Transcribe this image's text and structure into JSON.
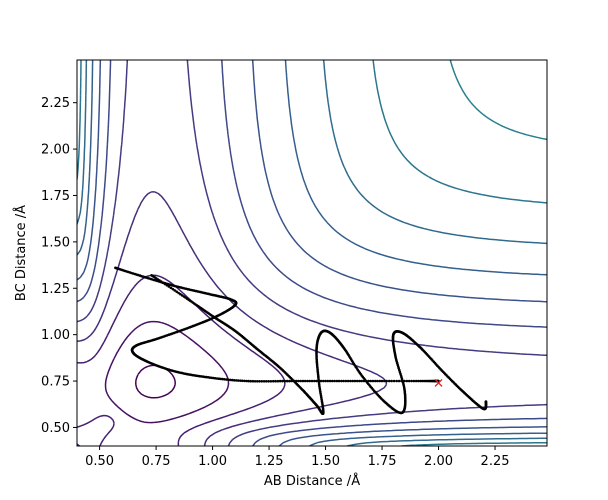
{
  "chart_data": {
    "type": "contour",
    "title": "",
    "xlabel": "AB Distance /Å",
    "ylabel": "BC Distance /Å",
    "xlim": [
      0.4,
      2.48
    ],
    "ylim": [
      0.4,
      2.48
    ],
    "xticks": [
      "0.50",
      "0.75",
      "1.00",
      "1.25",
      "1.50",
      "1.75",
      "2.00",
      "2.25"
    ],
    "yticks": [
      "0.50",
      "0.75",
      "1.00",
      "1.25",
      "1.50",
      "1.75",
      "2.00",
      "2.25"
    ],
    "grid": false,
    "colormap": "viridis",
    "contour_levels": 24,
    "surface": {
      "description": "LEPS-like potential energy surface for A + BC",
      "well_depth": 1.0,
      "equilibrium_distance": 0.74,
      "morse_a": 1.9
    },
    "trajectory": {
      "color": "#000000",
      "points": [
        [
          0.57,
          1.36
        ],
        [
          0.7,
          1.31
        ],
        [
          0.84,
          1.26
        ],
        [
          0.98,
          1.22
        ],
        [
          1.08,
          1.19
        ],
        [
          1.1,
          1.16
        ],
        [
          1.02,
          1.1
        ],
        [
          0.9,
          1.04
        ],
        [
          0.76,
          0.98
        ],
        [
          0.66,
          0.94
        ],
        [
          0.65,
          0.9
        ],
        [
          0.72,
          0.85
        ],
        [
          0.84,
          0.8
        ],
        [
          0.98,
          0.77
        ],
        [
          1.15,
          0.75
        ],
        [
          1.35,
          0.75
        ],
        [
          1.55,
          0.75
        ],
        [
          1.75,
          0.75
        ],
        [
          1.95,
          0.75
        ],
        [
          2.0,
          0.75
        ]
      ]
    },
    "secondary_trajectory": {
      "color": "#000000",
      "points": [
        [
          0.73,
          1.32
        ],
        [
          0.88,
          1.2
        ],
        [
          1.0,
          1.1
        ],
        [
          1.1,
          1.02
        ],
        [
          1.2,
          0.92
        ],
        [
          1.3,
          0.82
        ],
        [
          1.4,
          0.7
        ],
        [
          1.46,
          0.62
        ],
        [
          1.49,
          0.58
        ],
        [
          1.47,
          0.75
        ],
        [
          1.46,
          0.92
        ],
        [
          1.48,
          1.01
        ],
        [
          1.52,
          1.01
        ],
        [
          1.58,
          0.93
        ],
        [
          1.66,
          0.78
        ],
        [
          1.76,
          0.64
        ],
        [
          1.84,
          0.58
        ],
        [
          1.85,
          0.7
        ],
        [
          1.81,
          0.88
        ],
        [
          1.8,
          1.0
        ],
        [
          1.84,
          1.01
        ],
        [
          1.92,
          0.93
        ],
        [
          2.02,
          0.8
        ],
        [
          2.12,
          0.68
        ],
        [
          2.2,
          0.6
        ],
        [
          2.21,
          0.64
        ]
      ]
    },
    "marker": {
      "x": 2.0,
      "y": 0.74,
      "symbol": "x",
      "color": "#e41a1c"
    }
  }
}
